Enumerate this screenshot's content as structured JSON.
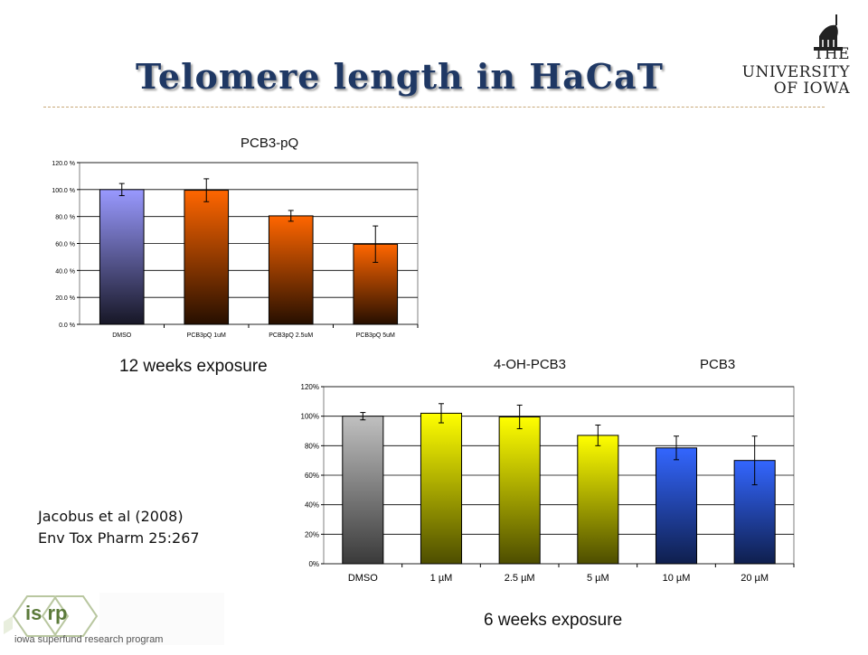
{
  "slide": {
    "title": "Telomere length in HaCaT",
    "logo_lines": [
      "THE",
      "UNIVERSITY",
      "OF IOWA"
    ],
    "caption_12wk": "12 weeks exposure",
    "caption_6wk": "6 weeks exposure",
    "label_4oh": "4-OH-PCB3",
    "label_pcb3": "PCB3",
    "citation_line1": "Jacobus et al (2008)",
    "citation_line2": "Env Tox Pharm 25:267",
    "isrp_text": "iowa superfund research program",
    "isrp_mark": "is rp"
  },
  "chart_data": [
    {
      "type": "bar",
      "title": "PCB3-pQ",
      "categories": [
        "DMSO",
        "PCB3pQ  1uM",
        "PCB3pQ  2.5uM",
        "PCB3pQ  5uM"
      ],
      "values": [
        100,
        99.5,
        80.5,
        59.5
      ],
      "errors": [
        4.5,
        8.5,
        4,
        13.5
      ],
      "ylim": [
        0,
        120
      ],
      "yticks": [
        "0.0 %",
        "20.0 %",
        "40.0 %",
        "60.0 %",
        "80.0 %",
        "100.0 %",
        "120.0 %"
      ],
      "grid": true,
      "colors": [
        "#9999ff",
        "#ff6600",
        "#ff6600",
        "#ff6600"
      ]
    },
    {
      "type": "bar",
      "categories": [
        "DMSO",
        "1 µM",
        "2.5 µM",
        "5 µM",
        "10 µM",
        "20 µM"
      ],
      "values": [
        100,
        102,
        99.5,
        87,
        78.5,
        70
      ],
      "errors": [
        2.5,
        6.5,
        8,
        7,
        8,
        16.5
      ],
      "ylim": [
        0,
        120
      ],
      "yticks": [
        "0%",
        "20%",
        "40%",
        "60%",
        "80%",
        "100%",
        "120%"
      ],
      "grid": true,
      "colors": [
        "#c0c0c0",
        "#ffff00",
        "#ffff00",
        "#ffff00",
        "#3366ff",
        "#3366ff"
      ]
    }
  ]
}
